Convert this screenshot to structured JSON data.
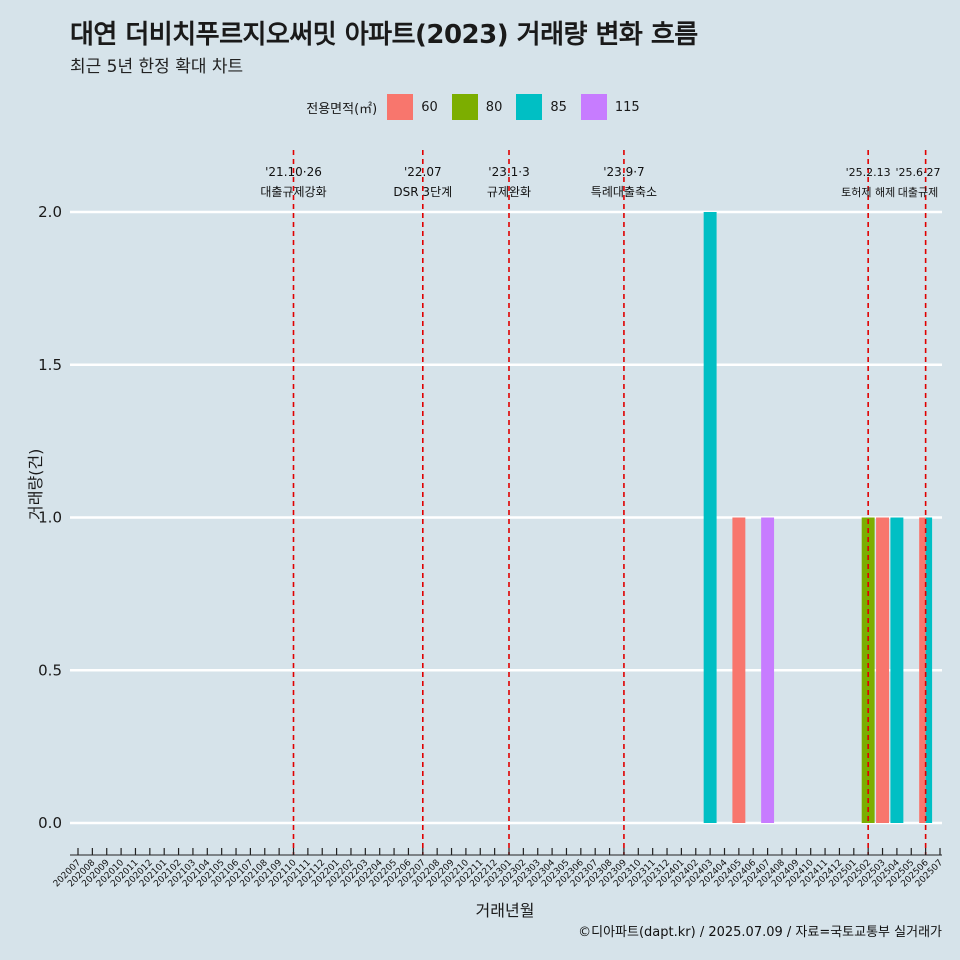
{
  "title": "대연 더비치푸르지오써밋 아파트(2023) 거래량 변화 흐름",
  "subtitle": "최근 5년 한정 확대 차트",
  "caption": "©디아파트(dapt.kr) / 2025.07.09 / 자료=국토교통부 실거래가",
  "legend": {
    "title": "전용면적(㎡)",
    "items": [
      {
        "label": "60",
        "color": "#f8766d"
      },
      {
        "label": "80",
        "color": "#7cae00"
      },
      {
        "label": "85",
        "color": "#00bfc4"
      },
      {
        "label": "115",
        "color": "#c77cff"
      }
    ]
  },
  "chart_data": {
    "type": "bar",
    "xlabel": "거래년월",
    "ylabel": "거래량(건)",
    "ylim": [
      0,
      2
    ],
    "yticks": [
      "0.0",
      "0.5",
      "1.0",
      "1.5",
      "2.0"
    ],
    "categories": [
      "202007",
      "202008",
      "202009",
      "202010",
      "202011",
      "202012",
      "202101",
      "202102",
      "202103",
      "202104",
      "202105",
      "202106",
      "202107",
      "202108",
      "202109",
      "202110",
      "202111",
      "202112",
      "202201",
      "202202",
      "202203",
      "202204",
      "202205",
      "202206",
      "202207",
      "202208",
      "202209",
      "202210",
      "202211",
      "202212",
      "202301",
      "202302",
      "202303",
      "202304",
      "202305",
      "202306",
      "202307",
      "202308",
      "202309",
      "202310",
      "202311",
      "202312",
      "202401",
      "202402",
      "202403",
      "202404",
      "202405",
      "202406",
      "202407",
      "202408",
      "202409",
      "202410",
      "202411",
      "202412",
      "202501",
      "202502",
      "202503",
      "202504",
      "202505",
      "202506",
      "202507"
    ],
    "series": [
      {
        "name": "60",
        "color": "#f8766d",
        "points": [
          {
            "x": "202405",
            "y": 1
          },
          {
            "x": "202503",
            "y": 1
          },
          {
            "x": "202506",
            "y": 1
          }
        ]
      },
      {
        "name": "80",
        "color": "#7cae00",
        "points": [
          {
            "x": "202502",
            "y": 1
          }
        ]
      },
      {
        "name": "85",
        "color": "#00bfc4",
        "points": [
          {
            "x": "202403",
            "y": 2
          },
          {
            "x": "202504",
            "y": 1
          },
          {
            "x": "202506",
            "y": 1
          }
        ]
      },
      {
        "name": "115",
        "color": "#c77cff",
        "points": [
          {
            "x": "202407",
            "y": 1
          }
        ]
      }
    ],
    "events": [
      {
        "x": "202110",
        "date": "'21.10·26",
        "label": "대출규제강화"
      },
      {
        "x": "202207",
        "date": "'22.07",
        "label": "DSR 3단계"
      },
      {
        "x": "202301",
        "date": "'23.1·3",
        "label": "규제완화"
      },
      {
        "x": "202309",
        "date": "'23.9·7",
        "label": "특례대출축소"
      },
      {
        "x": "202502",
        "date": "'25.2.13",
        "label": "토허제 해제"
      },
      {
        "x": "202506",
        "date": "'25.6·27",
        "label": "대출규제"
      }
    ],
    "grid": true,
    "legend_position": "top"
  }
}
